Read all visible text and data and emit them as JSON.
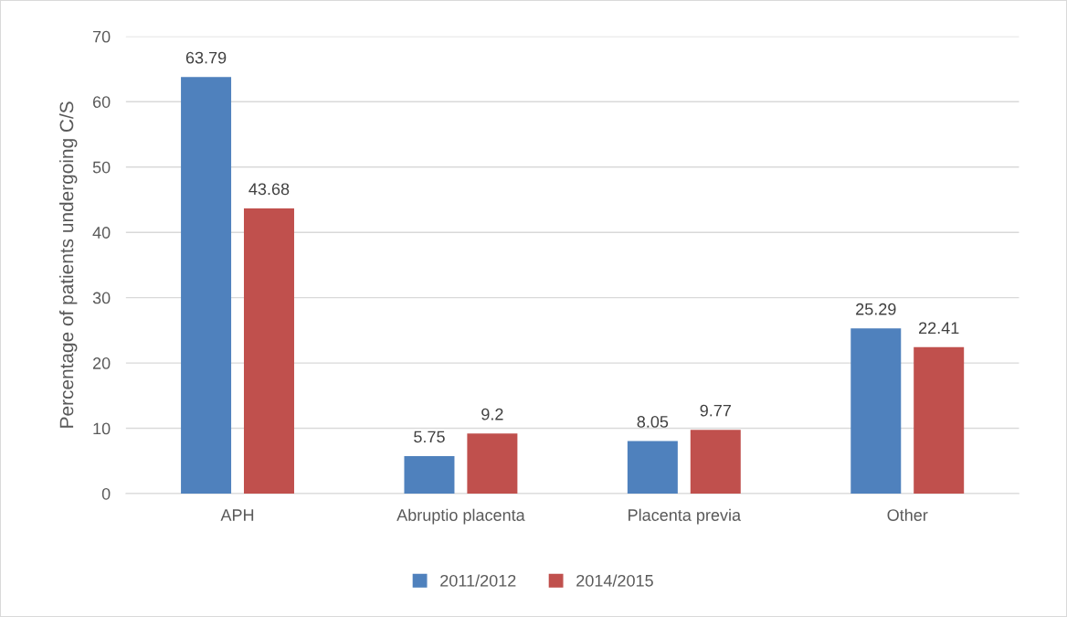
{
  "chart_data": {
    "type": "bar",
    "ylabel": "Percentage of patients undergoing C/S",
    "categories": [
      "APH",
      "Abruptio placenta",
      "Placenta previa",
      "Other"
    ],
    "series": [
      {
        "name": "2011/2012",
        "color": "#4f81bd",
        "values": [
          63.79,
          5.75,
          8.05,
          25.29
        ]
      },
      {
        "name": "2014/2015",
        "color": "#c0504d",
        "values": [
          43.68,
          9.2,
          9.77,
          22.41
        ]
      }
    ],
    "ylim": [
      0,
      70
    ],
    "yticks": [
      0,
      10,
      20,
      30,
      40,
      50,
      60,
      70
    ],
    "grid": "y",
    "legend": "bottom",
    "data_labels": true
  }
}
